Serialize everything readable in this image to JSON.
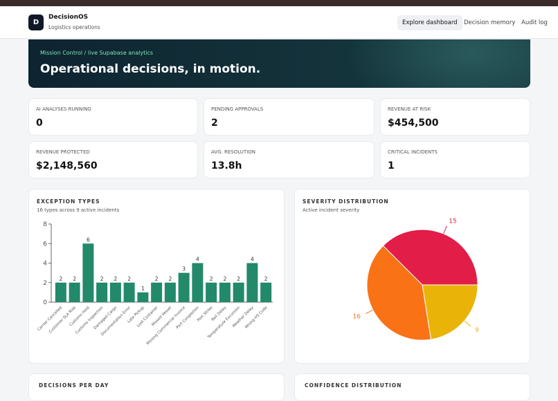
{
  "header": {
    "logo": "D",
    "title": "DecisionOS",
    "subtitle": "Logistics operations",
    "nav": [
      "Explore dashboard",
      "Decision memory",
      "Audit log"
    ]
  },
  "hero": {
    "breadcrumb": "Mission Control / live Supabase analytics",
    "title": "Operational decisions, in motion."
  },
  "kpis": [
    {
      "label": "AI ANALYSES RUNNING",
      "value": "0"
    },
    {
      "label": "PENDING APPROVALS",
      "value": "2"
    },
    {
      "label": "REVENUE AT RISK",
      "value": "$454,500"
    },
    {
      "label": "REVENUE PROTECTED",
      "value": "$2,148,560"
    },
    {
      "label": "AVG. RESOLUTION",
      "value": "13.8h"
    },
    {
      "label": "CRITICAL INCIDENTS",
      "value": "1"
    }
  ],
  "chart_data": [
    {
      "type": "bar",
      "title": "EXCEPTION TYPES",
      "subtitle": "16 types across 9 active incidents",
      "categories": [
        "Carrier Cancelled",
        "Customer SLA Risk",
        "Customs Hold",
        "Customs Inspection",
        "Damaged Cargo",
        "Documentation Error",
        "Late Pickup",
        "Lost Container",
        "Missed Vessel",
        "Missing Commercial Invoice",
        "Port Congestion",
        "Port Strike",
        "Rail Delay",
        "Temperature Excursion",
        "Weather Delay",
        "Wrong HS Code"
      ],
      "values": [
        2,
        2,
        6,
        2,
        2,
        2,
        1,
        2,
        2,
        3,
        4,
        2,
        2,
        2,
        4,
        2
      ],
      "color": "#23896b",
      "ylim": [
        0,
        8
      ],
      "yticks": [
        0,
        2,
        4,
        6,
        8
      ]
    },
    {
      "type": "pie",
      "title": "SEVERITY DISTRIBUTION",
      "subtitle": "Active incident severity",
      "values": [
        15,
        9,
        16
      ],
      "colors": [
        "#e11d48",
        "#eab308",
        "#f97316"
      ]
    }
  ],
  "bottom": [
    "DECISIONS PER DAY",
    "CONFIDENCE DISTRIBUTION"
  ]
}
